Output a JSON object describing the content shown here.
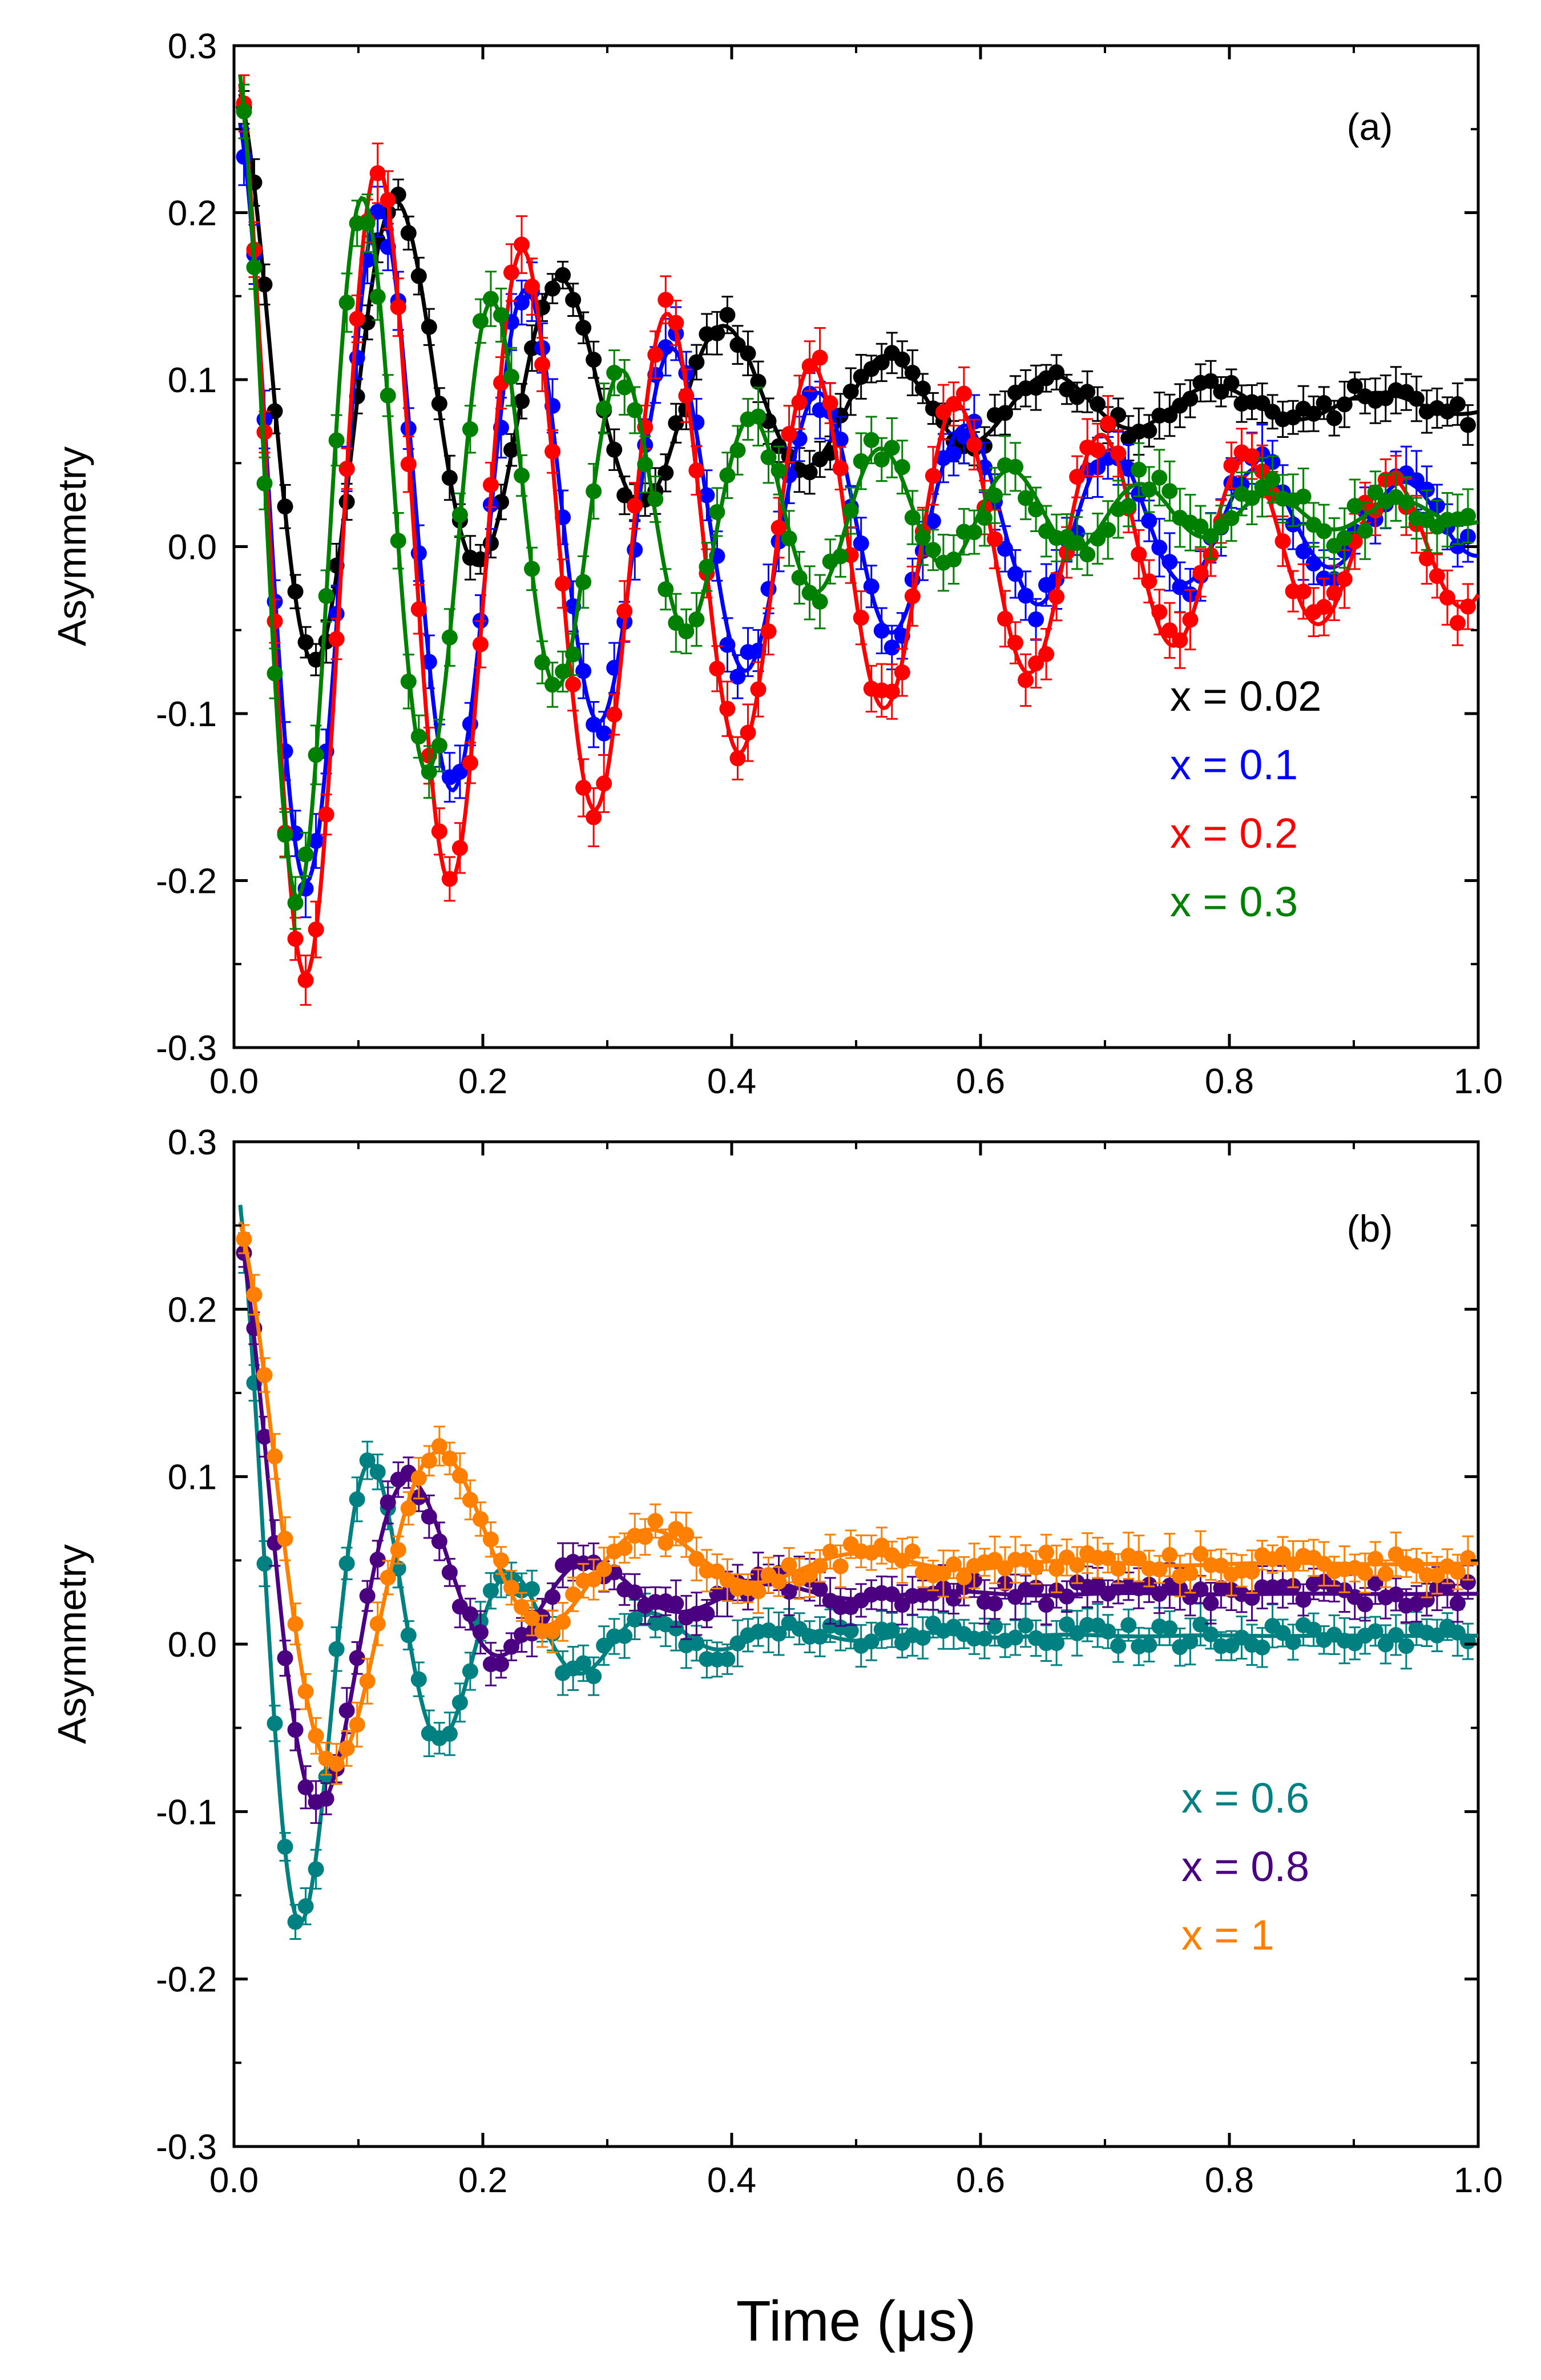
{
  "chart_data": [
    {
      "type": "scatter",
      "panel_label": "(a)",
      "title": "",
      "xlabel": "",
      "ylabel": "Asymmetry",
      "xlim": [
        0.0,
        1.0
      ],
      "ylim": [
        -0.3,
        0.3
      ],
      "x_ticks": [
        "0.0",
        "0.2",
        "0.4",
        "0.6",
        "0.8",
        "1.0"
      ],
      "x_tick_values": [
        0.0,
        0.2,
        0.4,
        0.6,
        0.8,
        1.0
      ],
      "y_ticks": [
        "0.3",
        "0.2",
        "0.1",
        "0.0",
        "-0.1",
        "-0.2",
        "-0.3"
      ],
      "y_tick_values": [
        0.3,
        0.2,
        0.1,
        0.0,
        -0.1,
        -0.2,
        -0.3
      ],
      "legend_position": "right",
      "series": [
        {
          "name": "x = 0.02",
          "color": "#000000",
          "model": {
            "offset": 0.085,
            "amp": 0.195,
            "freq": 7.6,
            "phase": 0.0,
            "decay": 3.6,
            "t0": 0.005
          },
          "error": 0.008
        },
        {
          "name": "x = 0.1",
          "color": "#0000ff",
          "model": {
            "offset": 0.015,
            "amp": 0.25,
            "freq": 8.5,
            "phase": 0.0,
            "decay": 2.5,
            "t0": 0.005
          },
          "error": 0.012
        },
        {
          "name": "x = 0.2",
          "color": "#ff0000",
          "model": {
            "offset": 0.0,
            "amp": 0.29,
            "freq": 8.6,
            "phase": 0.0,
            "decay": 2.1,
            "t0": 0.005
          },
          "error": 0.012
        },
        {
          "name": "x = 0.3",
          "color": "#008000",
          "model": {
            "offset": 0.02,
            "amp": 0.28,
            "freq": 9.6,
            "phase": 0.0,
            "decay": 3.8,
            "t0": 0.005
          },
          "error": 0.012
        }
      ]
    },
    {
      "type": "scatter",
      "panel_label": "(b)",
      "title": "",
      "xlabel": "Time (μs)",
      "ylabel": "Asymmetry",
      "xlim": [
        0.0,
        1.0
      ],
      "ylim": [
        -0.3,
        0.3
      ],
      "x_ticks": [
        "0.0",
        "0.2",
        "0.4",
        "0.6",
        "0.8",
        "1.0"
      ],
      "x_tick_values": [
        0.0,
        0.2,
        0.4,
        0.6,
        0.8,
        1.0
      ],
      "y_ticks": [
        "0.3",
        "0.2",
        "0.1",
        "0.0",
        "-0.1",
        "-0.2",
        "-0.3"
      ],
      "y_tick_values": [
        0.3,
        0.2,
        0.1,
        0.0,
        -0.1,
        -0.2,
        -0.3
      ],
      "legend_position": "right",
      "series": [
        {
          "name": "x = 0.6",
          "color": "#008080",
          "model": {
            "offset": 0.005,
            "amp": 0.28,
            "freq": 8.9,
            "phase": 0.0,
            "decay": 9.0,
            "t0": 0.005
          },
          "error": 0.008
        },
        {
          "name": "x = 0.8",
          "color": "#4b0082",
          "model": {
            "offset": 0.03,
            "amp": 0.23,
            "freq": 6.9,
            "phase": 0.0,
            "decay": 8.5,
            "t0": 0.005
          },
          "error": 0.008
        },
        {
          "name": "x = 1",
          "color": "#ff8000",
          "model": {
            "offset": 0.048,
            "amp": 0.215,
            "freq": 5.9,
            "phase": 0.0,
            "decay": 7.0,
            "t0": 0.005
          },
          "error": 0.008
        }
      ]
    }
  ]
}
